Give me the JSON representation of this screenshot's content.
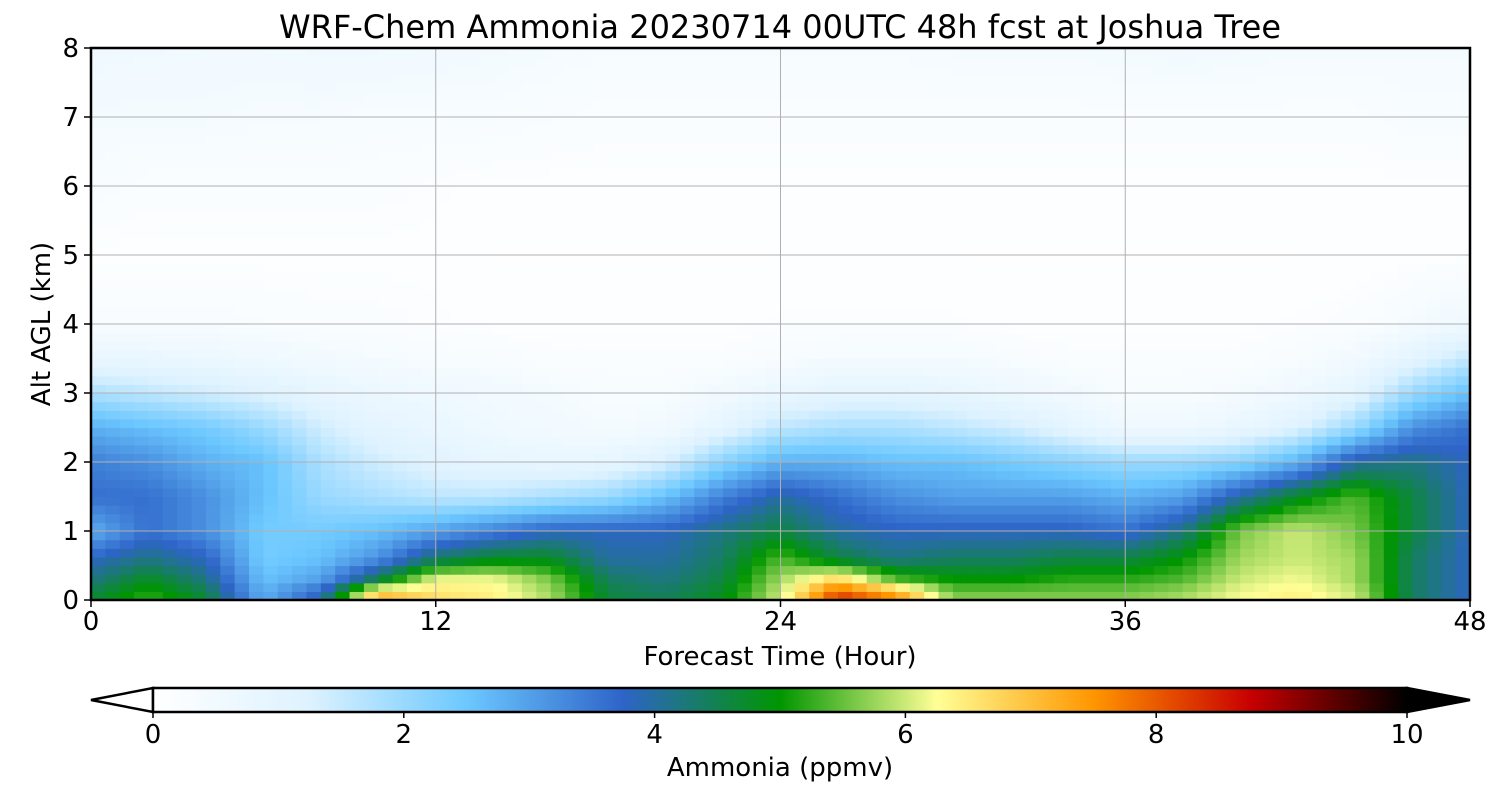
{
  "chart_data": {
    "type": "heatmap",
    "title": "WRF-Chem Ammonia  20230714 00UTC 48h fcst at Joshua Tree",
    "xlabel": "Forecast Time (Hour)",
    "ylabel": "Alt AGL (km)",
    "xlim": [
      0,
      48
    ],
    "ylim": [
      0,
      8
    ],
    "x_ticks": [
      0,
      12,
      24,
      36,
      48
    ],
    "y_ticks": [
      0,
      1,
      2,
      3,
      4,
      5,
      6,
      7,
      8
    ],
    "grid": true,
    "colorbar": {
      "label": "Ammonia  (ppmv)",
      "min": 0,
      "max": 10,
      "ticks": [
        0,
        2,
        4,
        6,
        8,
        10
      ],
      "extend": "both",
      "colors": [
        "#ffffff",
        "#ddf2ff",
        "#6cc8ff",
        "#2e64c8",
        "#009600",
        "#ffff96",
        "#ff9600",
        "#c80000",
        "#000000"
      ]
    },
    "field": {
      "x": [
        0,
        2,
        4,
        6,
        8,
        10,
        12,
        14,
        16,
        18,
        20,
        22,
        24,
        26,
        28,
        30,
        32,
        34,
        36,
        38,
        40,
        42,
        44,
        46,
        48
      ],
      "series": [
        {
          "alt_km": 0.1,
          "values": [
            4.6,
            5.2,
            4.6,
            2.8,
            3.8,
            7.0,
            6.6,
            6.4,
            5.8,
            4.6,
            4.4,
            4.8,
            6.0,
            8.2,
            7.4,
            5.6,
            5.6,
            5.6,
            5.6,
            5.8,
            6.2,
            6.4,
            6.0,
            4.4,
            3.8
          ]
        },
        {
          "alt_km": 0.3,
          "values": [
            4.2,
            4.8,
            4.2,
            2.6,
            3.0,
            4.6,
            6.2,
            6.2,
            5.6,
            4.4,
            4.2,
            4.6,
            5.8,
            6.8,
            5.4,
            5.0,
            5.0,
            5.2,
            5.2,
            5.4,
            6.0,
            6.2,
            5.8,
            4.4,
            3.8
          ]
        },
        {
          "alt_km": 0.6,
          "values": [
            3.8,
            4.2,
            3.8,
            2.4,
            2.6,
            3.2,
            4.4,
            4.8,
            4.8,
            4.0,
            4.0,
            4.4,
            5.4,
            4.6,
            4.2,
            4.4,
            4.4,
            4.6,
            4.6,
            5.0,
            5.8,
            6.0,
            5.8,
            4.4,
            3.8
          ]
        },
        {
          "alt_km": 1.0,
          "values": [
            2.8,
            3.6,
            3.2,
            2.4,
            2.4,
            2.6,
            3.0,
            3.4,
            3.8,
            3.8,
            3.8,
            4.2,
            4.6,
            4.0,
            3.8,
            3.8,
            3.8,
            3.8,
            3.6,
            4.2,
            5.6,
            6.0,
            5.6,
            4.6,
            3.8
          ]
        },
        {
          "alt_km": 1.5,
          "values": [
            3.6,
            3.6,
            3.2,
            2.6,
            2.0,
            1.8,
            1.6,
            1.6,
            1.8,
            2.0,
            2.6,
            3.4,
            4.0,
            3.6,
            3.2,
            3.0,
            3.0,
            3.0,
            2.8,
            3.0,
            4.0,
            4.8,
            5.4,
            4.6,
            3.8
          ]
        },
        {
          "alt_km": 2.0,
          "values": [
            3.4,
            3.2,
            2.8,
            2.6,
            1.8,
            1.4,
            1.1,
            0.9,
            0.8,
            0.9,
            1.3,
            2.2,
            2.8,
            2.8,
            2.6,
            2.6,
            2.4,
            2.2,
            2.0,
            2.0,
            2.2,
            2.8,
            4.0,
            4.2,
            3.8
          ]
        },
        {
          "alt_km": 2.5,
          "values": [
            2.8,
            2.6,
            2.4,
            2.0,
            1.4,
            1.0,
            0.8,
            0.6,
            0.5,
            0.4,
            0.5,
            1.0,
            1.6,
            1.8,
            1.8,
            1.6,
            1.4,
            1.0,
            0.6,
            0.6,
            0.8,
            1.2,
            2.0,
            3.2,
            3.6
          ]
        },
        {
          "alt_km": 3.0,
          "values": [
            1.8,
            1.6,
            1.4,
            1.2,
            0.9,
            0.7,
            0.6,
            0.5,
            0.4,
            0.3,
            0.3,
            0.5,
            0.8,
            1.0,
            1.0,
            0.9,
            0.7,
            0.5,
            0.3,
            0.3,
            0.4,
            0.6,
            1.0,
            2.0,
            2.6
          ]
        },
        {
          "alt_km": 3.5,
          "values": [
            0.8,
            0.8,
            0.7,
            0.6,
            0.5,
            0.4,
            0.3,
            0.3,
            0.2,
            0.2,
            0.2,
            0.2,
            0.3,
            0.4,
            0.4,
            0.4,
            0.3,
            0.2,
            0.2,
            0.2,
            0.2,
            0.3,
            0.5,
            1.0,
            1.6
          ]
        },
        {
          "alt_km": 4.0,
          "values": [
            0.3,
            0.3,
            0.3,
            0.25,
            0.2,
            0.2,
            0.15,
            0.1,
            0.1,
            0.1,
            0.1,
            0.1,
            0.15,
            0.15,
            0.15,
            0.15,
            0.1,
            0.1,
            0.1,
            0.1,
            0.1,
            0.15,
            0.2,
            0.4,
            0.6
          ]
        },
        {
          "alt_km": 5.0,
          "values": [
            0.1,
            0.1,
            0.1,
            0.1,
            0.1,
            0.1,
            0.1,
            0.05,
            0.05,
            0.05,
            0.05,
            0.05,
            0.05,
            0.05,
            0.05,
            0.05,
            0.05,
            0.05,
            0.05,
            0.05,
            0.05,
            0.05,
            0.05,
            0.1,
            0.1
          ]
        },
        {
          "alt_km": 6.0,
          "values": [
            0.3,
            0.2,
            0.2,
            0.2,
            0.2,
            0.2,
            0.15,
            0.1,
            0.1,
            0.1,
            0.1,
            0.1,
            0.1,
            0.1,
            0.1,
            0.1,
            0.1,
            0.1,
            0.1,
            0.1,
            0.1,
            0.1,
            0.1,
            0.1,
            0.1
          ]
        },
        {
          "alt_km": 7.0,
          "values": [
            0.4,
            0.4,
            0.4,
            0.35,
            0.35,
            0.3,
            0.3,
            0.3,
            0.25,
            0.2,
            0.2,
            0.2,
            0.2,
            0.2,
            0.2,
            0.2,
            0.2,
            0.2,
            0.2,
            0.2,
            0.2,
            0.2,
            0.2,
            0.3,
            0.3
          ]
        },
        {
          "alt_km": 8.0,
          "values": [
            0.6,
            0.55,
            0.5,
            0.5,
            0.55,
            0.55,
            0.5,
            0.45,
            0.4,
            0.35,
            0.35,
            0.35,
            0.35,
            0.35,
            0.35,
            0.4,
            0.4,
            0.4,
            0.45,
            0.5,
            0.45,
            0.4,
            0.4,
            0.4,
            0.4
          ]
        }
      ]
    }
  }
}
